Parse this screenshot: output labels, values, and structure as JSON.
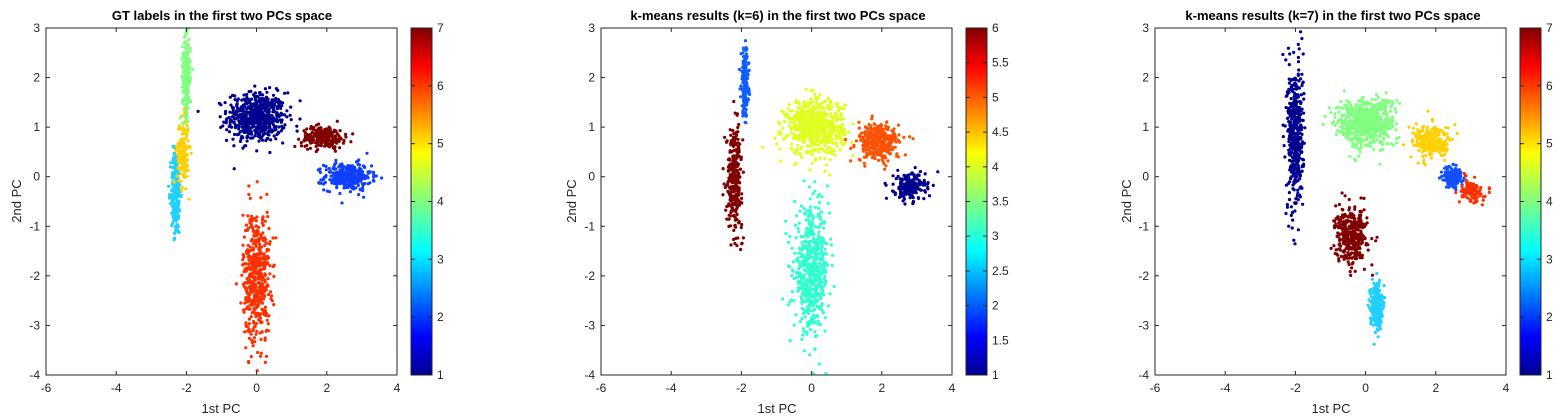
{
  "panels": [
    {
      "title": "GT labels in the first two PCs space",
      "xlabel": "1st PC",
      "ylabel": "2nd PC",
      "x_ticks": [
        "-6",
        "-4",
        "-2",
        "0",
        "2",
        "4"
      ],
      "y_ticks": [
        "3",
        "2",
        "1",
        "0",
        "-1",
        "-2",
        "-3",
        "-4"
      ],
      "colorbar_ticks": [
        "7",
        "6",
        "5",
        "4",
        "3",
        "2",
        "1"
      ]
    },
    {
      "title": "k-means results (k=6) in the first two PCs space",
      "xlabel": "1st PC",
      "ylabel": "2nd PC",
      "x_ticks": [
        "-6",
        "-4",
        "-2",
        "0",
        "2",
        "4"
      ],
      "y_ticks": [
        "3",
        "2",
        "1",
        "0",
        "-1",
        "-2",
        "-3",
        "-4"
      ],
      "colorbar_ticks": [
        "6",
        "5.5",
        "5",
        "4.5",
        "4",
        "3.5",
        "3",
        "2.5",
        "2",
        "1.5",
        "1"
      ]
    },
    {
      "title": "k-means results (k=7) in the first two PCs space",
      "xlabel": "1st PC",
      "ylabel": "2nd PC",
      "x_ticks": [
        "-6",
        "-4",
        "-2",
        "0",
        "2",
        "4"
      ],
      "y_ticks": [
        "3",
        "2",
        "1",
        "0",
        "-1",
        "-2",
        "-3",
        "-4"
      ],
      "colorbar_ticks": [
        "7",
        "6",
        "5",
        "4",
        "3",
        "2",
        "1"
      ]
    }
  ],
  "chart_data": [
    {
      "type": "scatter",
      "title": "GT labels in the first two PCs space",
      "xlabel": "1st PC",
      "ylabel": "2nd PC",
      "xlim": [
        -6,
        4
      ],
      "ylim": [
        -4,
        3
      ],
      "colormap": "jet",
      "clim": [
        1,
        7
      ],
      "grid": false,
      "colorbar": "right",
      "clusters": [
        {
          "label": 1,
          "color": "#00008f",
          "center": [
            0.0,
            1.2
          ],
          "spread": [
            0.75,
            0.45
          ],
          "approx_points": 600
        },
        {
          "label": 2,
          "color": "#0f3fff",
          "center": [
            2.6,
            0.0
          ],
          "spread": [
            0.6,
            0.25
          ],
          "approx_points": 300
        },
        {
          "label": 3,
          "color": "#20d0ff",
          "center": [
            -2.3,
            -0.3
          ],
          "spread": [
            0.12,
            0.8
          ],
          "approx_points": 250
        },
        {
          "label": 4,
          "color": "#80ff80",
          "center": [
            -2.0,
            2.0
          ],
          "spread": [
            0.1,
            0.7
          ],
          "approx_points": 250
        },
        {
          "label": 5,
          "color": "#ffd000",
          "center": [
            -2.1,
            0.5
          ],
          "spread": [
            0.15,
            0.6
          ],
          "approx_points": 150
        },
        {
          "label": 6,
          "color": "#ff3000",
          "center": [
            0.0,
            -2.0
          ],
          "spread": [
            0.35,
            1.2
          ],
          "approx_points": 500
        },
        {
          "label": 7,
          "color": "#800000",
          "center": [
            1.9,
            0.8
          ],
          "spread": [
            0.55,
            0.2
          ],
          "approx_points": 250
        }
      ]
    },
    {
      "type": "scatter",
      "title": "k-means results (k=6) in the first two PCs space",
      "xlabel": "1st PC",
      "ylabel": "2nd PC",
      "xlim": [
        -6,
        4
      ],
      "ylim": [
        -4,
        3
      ],
      "colormap": "jet",
      "clim": [
        1,
        6
      ],
      "grid": false,
      "colorbar": "right",
      "clusters": [
        {
          "label": 1,
          "color": "#00008f",
          "center": [
            2.8,
            -0.2
          ],
          "spread": [
            0.4,
            0.25
          ],
          "approx_points": 200
        },
        {
          "label": 2,
          "color": "#0f5fff",
          "center": [
            -1.9,
            1.9
          ],
          "spread": [
            0.1,
            0.6
          ],
          "approx_points": 200
        },
        {
          "label": 3,
          "color": "#30ffd0",
          "center": [
            0.0,
            -1.9
          ],
          "spread": [
            0.45,
            1.1
          ],
          "approx_points": 550
        },
        {
          "label": 4,
          "color": "#e0ff20",
          "center": [
            0.1,
            1.0
          ],
          "spread": [
            0.75,
            0.5
          ],
          "approx_points": 650
        },
        {
          "label": 5,
          "color": "#ff5000",
          "center": [
            1.9,
            0.7
          ],
          "spread": [
            0.55,
            0.35
          ],
          "approx_points": 300
        },
        {
          "label": 6,
          "color": "#800000",
          "center": [
            -2.2,
            0.0
          ],
          "spread": [
            0.2,
            0.9
          ],
          "approx_points": 300
        }
      ]
    },
    {
      "type": "scatter",
      "title": "k-means results (k=7) in the first two PCs space",
      "xlabel": "1st PC",
      "ylabel": "2nd PC",
      "xlim": [
        -6,
        4
      ],
      "ylim": [
        -4,
        3
      ],
      "colormap": "jet",
      "clim": [
        1,
        7
      ],
      "grid": false,
      "colorbar": "right",
      "clusters": [
        {
          "label": 1,
          "color": "#00008f",
          "center": [
            -2.0,
            0.8
          ],
          "spread": [
            0.2,
            1.4
          ],
          "approx_points": 450
        },
        {
          "label": 2,
          "color": "#1050ff",
          "center": [
            2.5,
            0.0
          ],
          "spread": [
            0.25,
            0.2
          ],
          "approx_points": 150
        },
        {
          "label": 3,
          "color": "#20d0ff",
          "center": [
            0.3,
            -2.6
          ],
          "spread": [
            0.15,
            0.4
          ],
          "approx_points": 250
        },
        {
          "label": 4,
          "color": "#80ff80",
          "center": [
            0.0,
            1.1
          ],
          "spread": [
            0.75,
            0.45
          ],
          "approx_points": 600
        },
        {
          "label": 5,
          "color": "#ffd000",
          "center": [
            1.9,
            0.7
          ],
          "spread": [
            0.5,
            0.3
          ],
          "approx_points": 250
        },
        {
          "label": 6,
          "color": "#ff3000",
          "center": [
            3.0,
            -0.3
          ],
          "spread": [
            0.3,
            0.2
          ],
          "approx_points": 120
        },
        {
          "label": 7,
          "color": "#800000",
          "center": [
            -0.4,
            -1.2
          ],
          "spread": [
            0.4,
            0.5
          ],
          "approx_points": 350
        }
      ]
    }
  ]
}
